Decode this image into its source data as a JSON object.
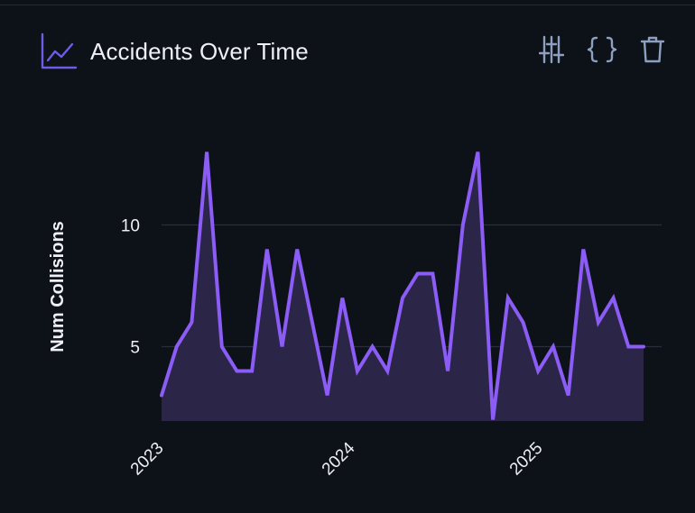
{
  "panel": {
    "title": "Accidents Over Time",
    "title_icon": "line-chart-icon",
    "toolbar": [
      {
        "name": "sliders-icon",
        "label": "Adjust"
      },
      {
        "name": "braces-icon",
        "label": "Code"
      },
      {
        "name": "trash-icon",
        "label": "Delete"
      }
    ]
  },
  "colors": {
    "background": "#0d1118",
    "line": "#8b5cf6",
    "area": "#2b2547",
    "grid": "#2a2e3a",
    "title_icon": "#6d5ce8",
    "toolbar_icon": "#8ea0bf",
    "text": "#eef0f5"
  },
  "chart_data": {
    "type": "area",
    "title": "",
    "xlabel": "",
    "ylabel": "Num Collisions",
    "x_ticks": [
      "2023",
      "2024",
      "2025"
    ],
    "y_ticks": [
      5,
      10
    ],
    "grid": "horizontal",
    "legend": "none",
    "series": [
      {
        "x": [
          "2023-01",
          "2023-02",
          "2023-03",
          "2023-04",
          "2023-05",
          "2023-06",
          "2023-07",
          "2023-08",
          "2023-09",
          "2023-10",
          "2023-11",
          "2023-12",
          "2024-01",
          "2024-02",
          "2024-03",
          "2024-04",
          "2024-05",
          "2024-06",
          "2024-07",
          "2024-08",
          "2024-09",
          "2024-10",
          "2024-11",
          "2024-12",
          "2025-01",
          "2025-02",
          "2025-03",
          "2025-04",
          "2025-05",
          "2025-06",
          "2025-07",
          "2025-08",
          "2025-09"
        ],
        "values": [
          3,
          5,
          6,
          13,
          5,
          4,
          4,
          9,
          5,
          9,
          6,
          3,
          7,
          4,
          5,
          4,
          7,
          8,
          8,
          4,
          10,
          13,
          2,
          7,
          6,
          4,
          5,
          3,
          9,
          6,
          7,
          5,
          5
        ]
      }
    ]
  }
}
